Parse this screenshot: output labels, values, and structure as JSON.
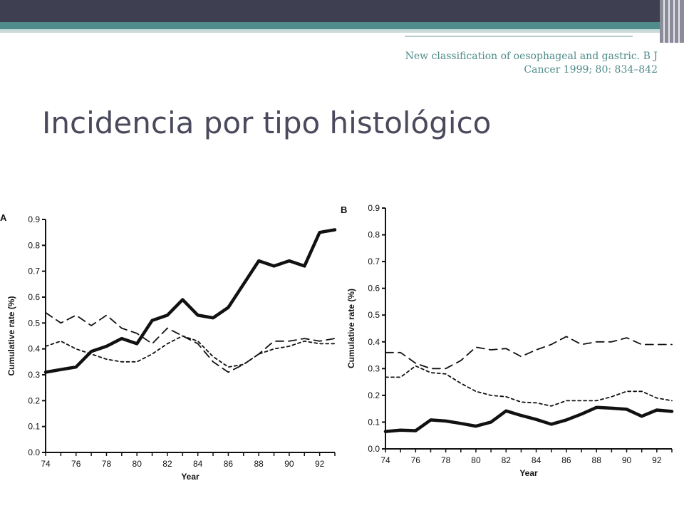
{
  "slide": {
    "title": "Incidencia por tipo histológico",
    "citation_line1": "New classification of oesophageal and gastric. B J",
    "citation_line2": "Cancer 1999; 80: 834–842"
  },
  "colors": {
    "bar": "#3f3f52",
    "accent": "#4f8c8a",
    "title": "#4a4a5c",
    "ink": "#111111"
  },
  "chart_data": [
    {
      "type": "line",
      "panel_label": "A",
      "xlabel": "Year",
      "ylabel": "Cumulative rate (%)",
      "xlim": [
        74,
        93
      ],
      "ylim": [
        0,
        0.9
      ],
      "xticks": [
        74,
        76,
        78,
        80,
        82,
        84,
        86,
        88,
        90,
        92
      ],
      "yticks": [
        0.0,
        0.1,
        0.2,
        0.3,
        0.4,
        0.5,
        0.6,
        0.7,
        0.8,
        0.9
      ],
      "x": [
        74,
        75,
        76,
        77,
        78,
        79,
        80,
        81,
        82,
        83,
        84,
        85,
        86,
        87,
        88,
        89,
        90,
        91,
        92,
        93
      ],
      "series": [
        {
          "style": "solid-thick",
          "values": [
            0.31,
            0.32,
            0.33,
            0.39,
            0.41,
            0.44,
            0.42,
            0.51,
            0.53,
            0.59,
            0.53,
            0.52,
            0.56,
            0.65,
            0.74,
            0.72,
            0.74,
            0.72,
            0.85,
            0.86
          ]
        },
        {
          "style": "long-dash",
          "values": [
            0.54,
            0.5,
            0.53,
            0.49,
            0.53,
            0.48,
            0.46,
            0.42,
            0.48,
            0.45,
            0.42,
            0.35,
            0.31,
            0.34,
            0.38,
            0.43,
            0.43,
            0.44,
            0.43,
            0.44
          ]
        },
        {
          "style": "short-dash",
          "values": [
            0.41,
            0.43,
            0.4,
            0.38,
            0.36,
            0.35,
            0.35,
            0.38,
            0.42,
            0.45,
            0.43,
            0.37,
            0.33,
            0.34,
            0.38,
            0.4,
            0.41,
            0.43,
            0.42,
            0.42
          ]
        }
      ]
    },
    {
      "type": "line",
      "panel_label": "B",
      "xlabel": "Year",
      "ylabel": "Cumulative rate (%)",
      "xlim": [
        74,
        93
      ],
      "ylim": [
        0,
        0.9
      ],
      "xticks": [
        74,
        76,
        78,
        80,
        82,
        84,
        86,
        88,
        90,
        92
      ],
      "yticks": [
        0.0,
        0.1,
        0.2,
        0.3,
        0.4,
        0.5,
        0.6,
        0.7,
        0.8,
        0.9
      ],
      "x": [
        74,
        75,
        76,
        77,
        78,
        79,
        80,
        81,
        82,
        83,
        84,
        85,
        86,
        87,
        88,
        89,
        90,
        91,
        92,
        93
      ],
      "series": [
        {
          "style": "solid-thick",
          "values": [
            0.065,
            0.07,
            0.068,
            0.108,
            0.104,
            0.095,
            0.085,
            0.1,
            0.142,
            0.125,
            0.11,
            0.092,
            0.108,
            0.13,
            0.155,
            0.152,
            0.148,
            0.122,
            0.145,
            0.14
          ]
        },
        {
          "style": "long-dash",
          "values": [
            0.36,
            0.36,
            0.32,
            0.3,
            0.3,
            0.33,
            0.38,
            0.37,
            0.375,
            0.345,
            0.37,
            0.39,
            0.42,
            0.39,
            0.4,
            0.4,
            0.415,
            0.39,
            0.39,
            0.39
          ]
        },
        {
          "style": "short-dash",
          "values": [
            0.268,
            0.268,
            0.31,
            0.285,
            0.28,
            0.245,
            0.215,
            0.2,
            0.195,
            0.175,
            0.172,
            0.16,
            0.18,
            0.18,
            0.18,
            0.195,
            0.215,
            0.215,
            0.19,
            0.18
          ]
        }
      ]
    }
  ]
}
